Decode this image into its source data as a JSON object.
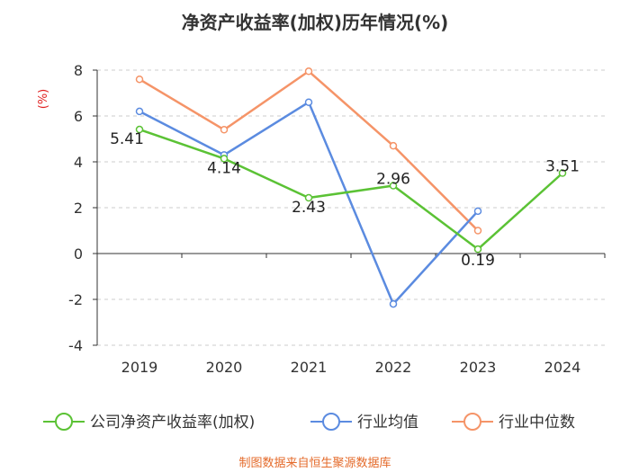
{
  "chart_data": {
    "type": "line",
    "title": "净资产收益率(加权)历年情况(%)",
    "ylabel": "(%)",
    "categories": [
      "2019",
      "2020",
      "2021",
      "2022",
      "2023",
      "2024"
    ],
    "ylim": [
      -4,
      8
    ],
    "yticks": [
      -4,
      -2,
      0,
      2,
      4,
      6,
      8
    ],
    "grid": true,
    "legend_position": "bottom",
    "series": [
      {
        "name": "公司净资产收益率(加权)",
        "color": "#5bc235",
        "values": [
          5.41,
          4.14,
          2.43,
          2.96,
          0.19,
          3.51
        ],
        "labels": [
          "5.41",
          "4.14",
          "2.43",
          "2.96",
          "0.19",
          "3.51"
        ]
      },
      {
        "name": "行业均值",
        "color": "#5b8be0",
        "values": [
          6.2,
          4.3,
          6.6,
          -2.2,
          1.85,
          null
        ]
      },
      {
        "name": "行业中位数",
        "color": "#f59468",
        "values": [
          7.6,
          5.4,
          7.95,
          4.7,
          1.0,
          null
        ]
      }
    ],
    "source": "制图数据来自恒生聚源数据库"
  }
}
